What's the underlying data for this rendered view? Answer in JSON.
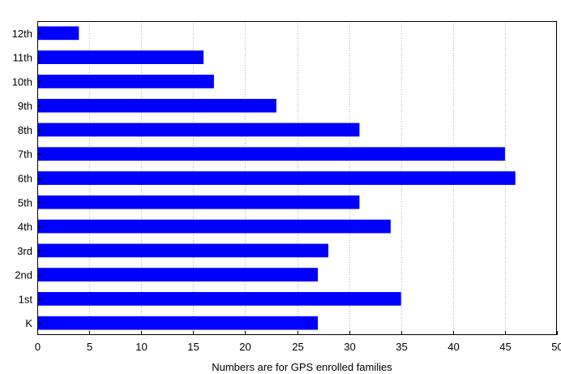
{
  "chart_data": {
    "type": "bar",
    "orientation": "horizontal",
    "title": "",
    "xlabel": "Numbers are for GPS enrolled families",
    "ylabel": "",
    "categories": [
      "12th",
      "11th",
      "10th",
      "9th",
      "8th",
      "7th",
      "6th",
      "5th",
      "4th",
      "3rd",
      "2nd",
      "1st",
      "K"
    ],
    "values": [
      4,
      16,
      17,
      23,
      31,
      45,
      46,
      31,
      34,
      28,
      27,
      35,
      27
    ],
    "xlim": [
      0,
      50
    ],
    "xticks": [
      0,
      5,
      10,
      15,
      20,
      25,
      30,
      35,
      40,
      45,
      50
    ],
    "grid": "vertical-dotted",
    "legend": "none",
    "bar_color": "#0000ff",
    "grid_color": "#b0b0b0"
  }
}
